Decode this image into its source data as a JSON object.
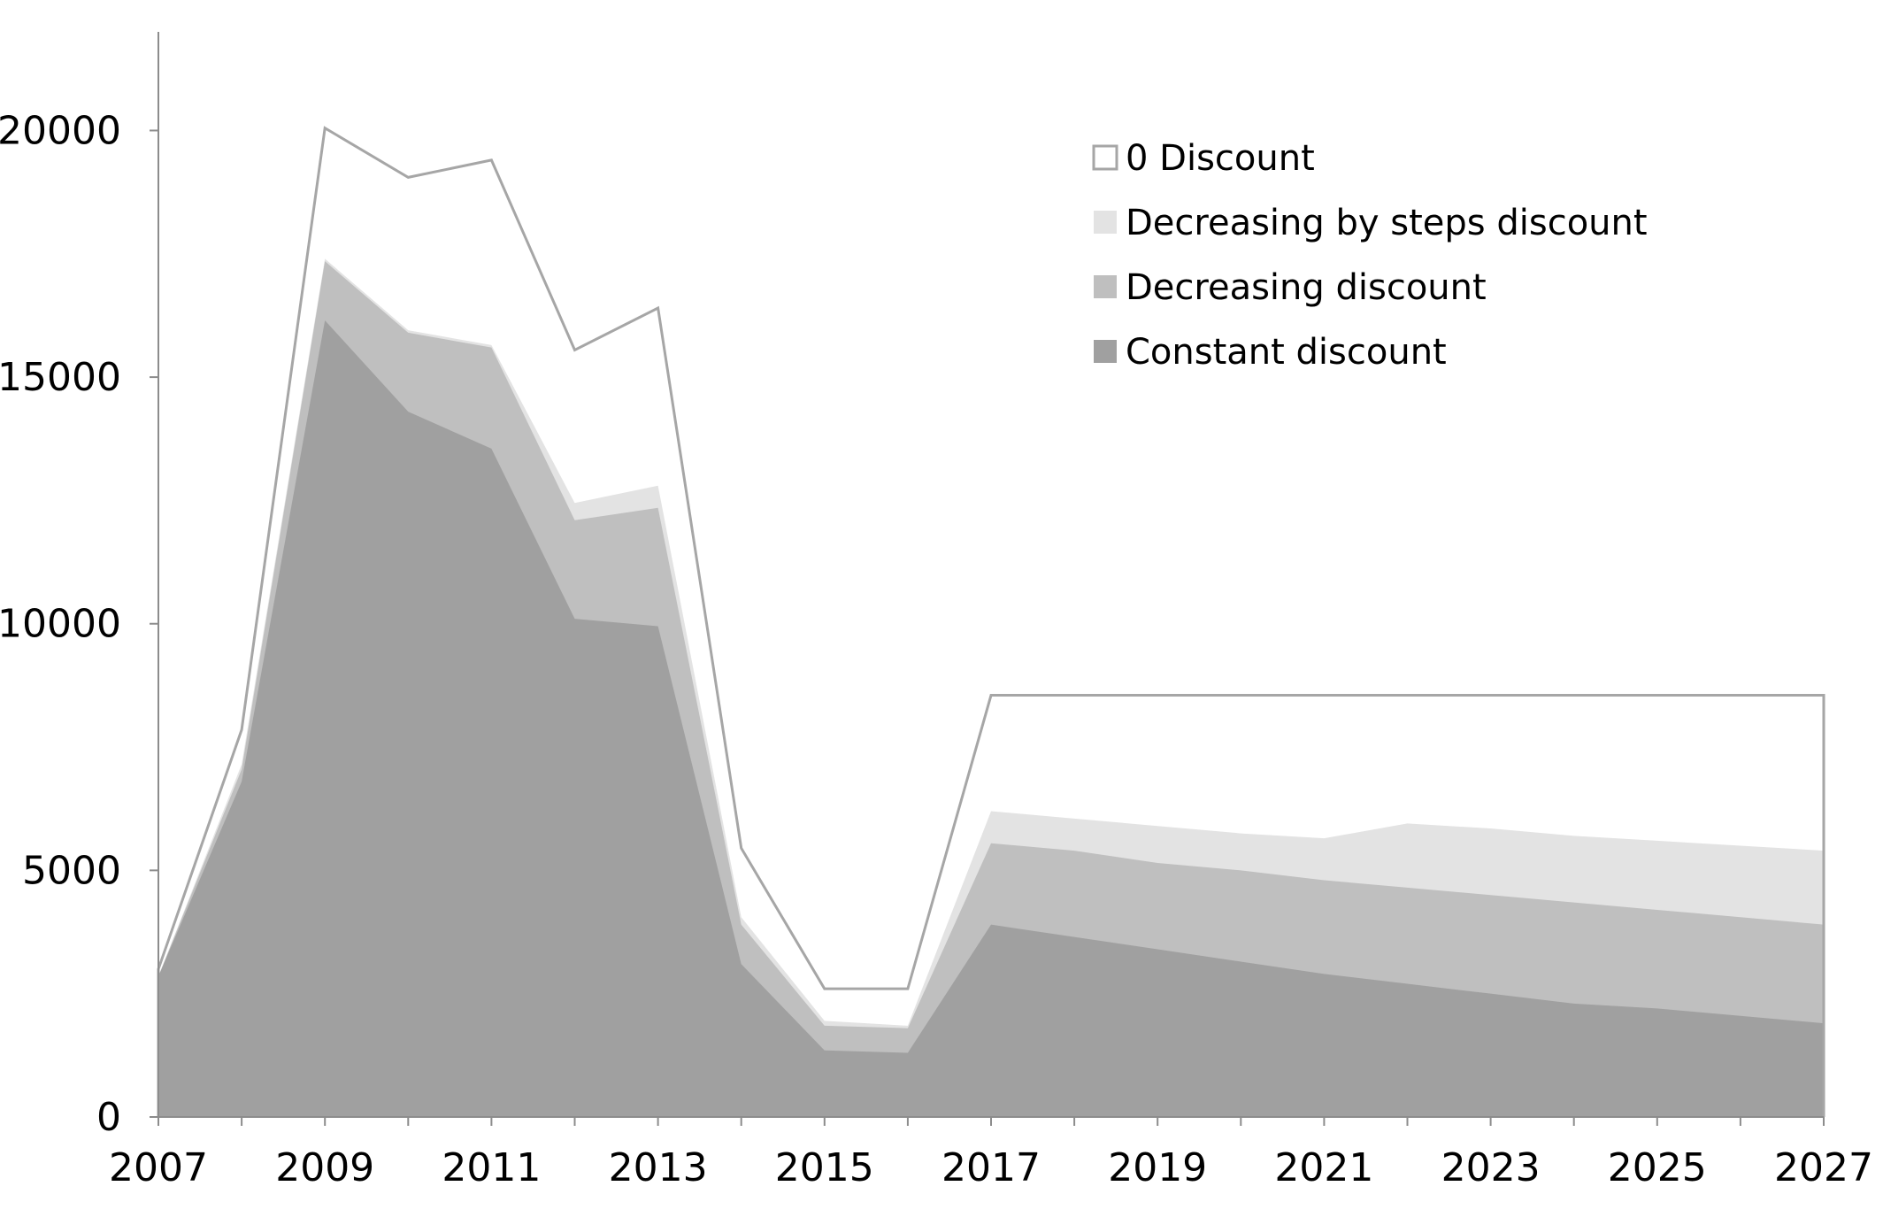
{
  "chart_data": {
    "type": "area",
    "title": "",
    "xlabel": "",
    "ylabel": "",
    "x": [
      2007,
      2008,
      2009,
      2010,
      2011,
      2012,
      2013,
      2014,
      2015,
      2016,
      2017,
      2018,
      2019,
      2020,
      2021,
      2022,
      2023,
      2024,
      2025,
      2026,
      2027
    ],
    "xlim": [
      2007,
      2027
    ],
    "ylim": [
      0,
      22000
    ],
    "x_ticks": [
      "2007",
      "2009",
      "2011",
      "2013",
      "2015",
      "2017",
      "2019",
      "2021",
      "2023",
      "2025",
      "2027"
    ],
    "y_ticks": [
      "0",
      "5000",
      "10000",
      "15000",
      "20000"
    ],
    "grid": false,
    "legend_position": "top-right",
    "series": [
      {
        "name": "0 Discount",
        "style": "outline",
        "color": "#a6a6a6",
        "values": [
          3000,
          7850,
          20050,
          19050,
          19400,
          15550,
          16400,
          5450,
          2600,
          2600,
          8550,
          8550,
          8550,
          8550,
          8550,
          8550,
          8550,
          8550,
          8550,
          8550,
          8550
        ]
      },
      {
        "name": "Decreasing by steps discount",
        "style": "fill",
        "color": "#e3e3e3",
        "values": [
          2850,
          7150,
          17400,
          15950,
          15650,
          12450,
          12800,
          4050,
          1950,
          1850,
          6200,
          6050,
          5900,
          5750,
          5650,
          5950,
          5850,
          5700,
          5600,
          5500,
          5400
        ]
      },
      {
        "name": "Decreasing discount",
        "style": "fill",
        "color": "#bfbfbf",
        "values": [
          2850,
          7050,
          17350,
          15900,
          15600,
          12100,
          12350,
          3900,
          1850,
          1800,
          5550,
          5400,
          5150,
          5000,
          4800,
          4650,
          4500,
          4350,
          4200,
          4050,
          3900
        ]
      },
      {
        "name": "Constant discount",
        "style": "fill",
        "color": "#a0a0a0",
        "values": [
          2850,
          6800,
          16150,
          14300,
          13550,
          10100,
          9950,
          3100,
          1350,
          1300,
          3900,
          3650,
          3400,
          3150,
          2900,
          2700,
          2500,
          2300,
          2200,
          2050,
          1900
        ]
      }
    ]
  }
}
